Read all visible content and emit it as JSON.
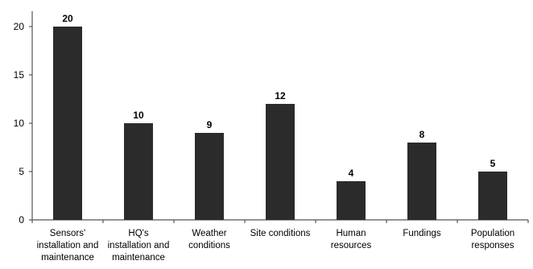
{
  "chart_data": {
    "type": "bar",
    "categories": [
      [
        "Sensors'",
        "installation and",
        "maintenance"
      ],
      [
        "HQ's",
        "installation and",
        "maintenance"
      ],
      [
        "Weather",
        "conditions"
      ],
      [
        "Site conditions"
      ],
      [
        "Human",
        "resources"
      ],
      [
        "Fundings"
      ],
      [
        "Population",
        "responses"
      ]
    ],
    "values": [
      20,
      10,
      9,
      12,
      4,
      8,
      5
    ],
    "value_labels": [
      "20",
      "10",
      "9",
      "12",
      "4",
      "8",
      "5"
    ],
    "ylim": [
      0,
      21.6
    ],
    "yticks": [
      0,
      5,
      10,
      15,
      20
    ],
    "bar_color": "#2b2b2b",
    "grid": false,
    "legend": "none"
  }
}
